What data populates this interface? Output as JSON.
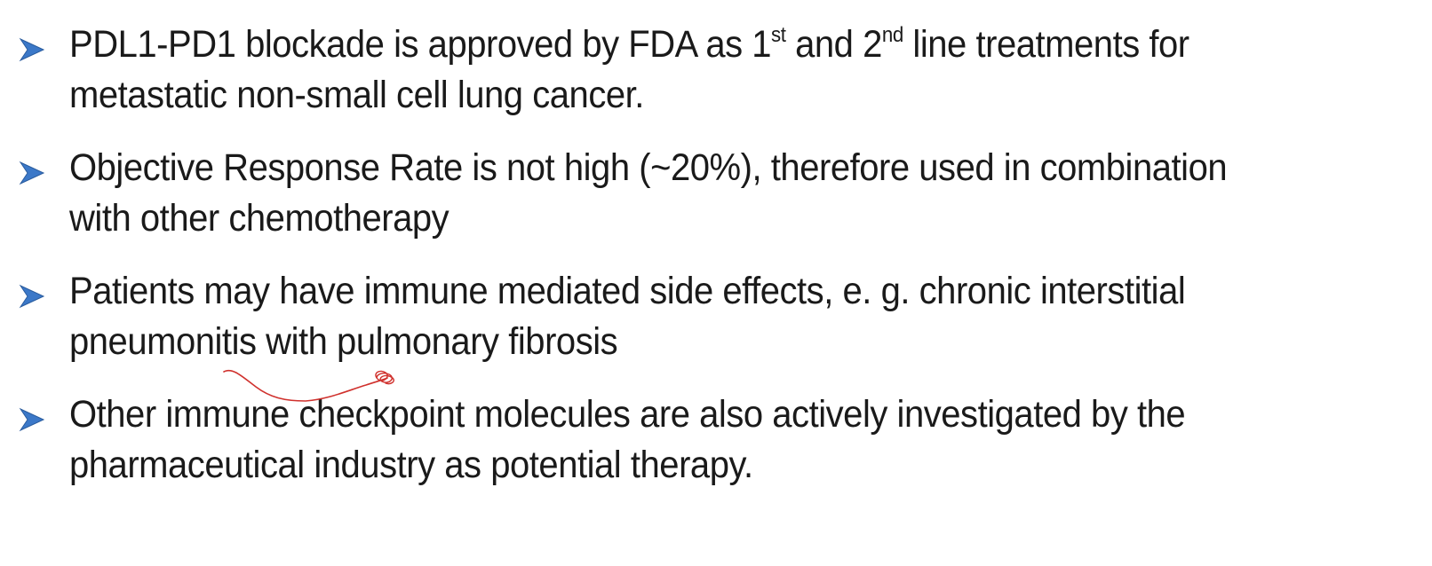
{
  "slide": {
    "bullet_marker_icon": "arrowhead-bullet-icon",
    "accent_color": "#3b78c8",
    "ink_color": "#d0312d",
    "bullets": [
      {
        "line1_a": "PDL1-PD1 blockade is approved by FDA as 1",
        "line1_sup1": "st",
        "line1_b": " and 2",
        "line1_sup2": "nd",
        "line1_c": " line treatments for",
        "line2": "metastatic non-small cell lung cancer."
      },
      {
        "line1": "Objective Response Rate is not high (~20%), therefore used in combination",
        "line2": "with other chemotherapy"
      },
      {
        "line1": "Patients may have immune mediated side effects, e. g. chronic interstitial",
        "line2": "pneumonitis with pulmonary fibrosis"
      },
      {
        "line1": "Other immune checkpoint molecules are also actively investigated by the",
        "line2": "pharmaceutical industry as potential therapy."
      }
    ]
  }
}
